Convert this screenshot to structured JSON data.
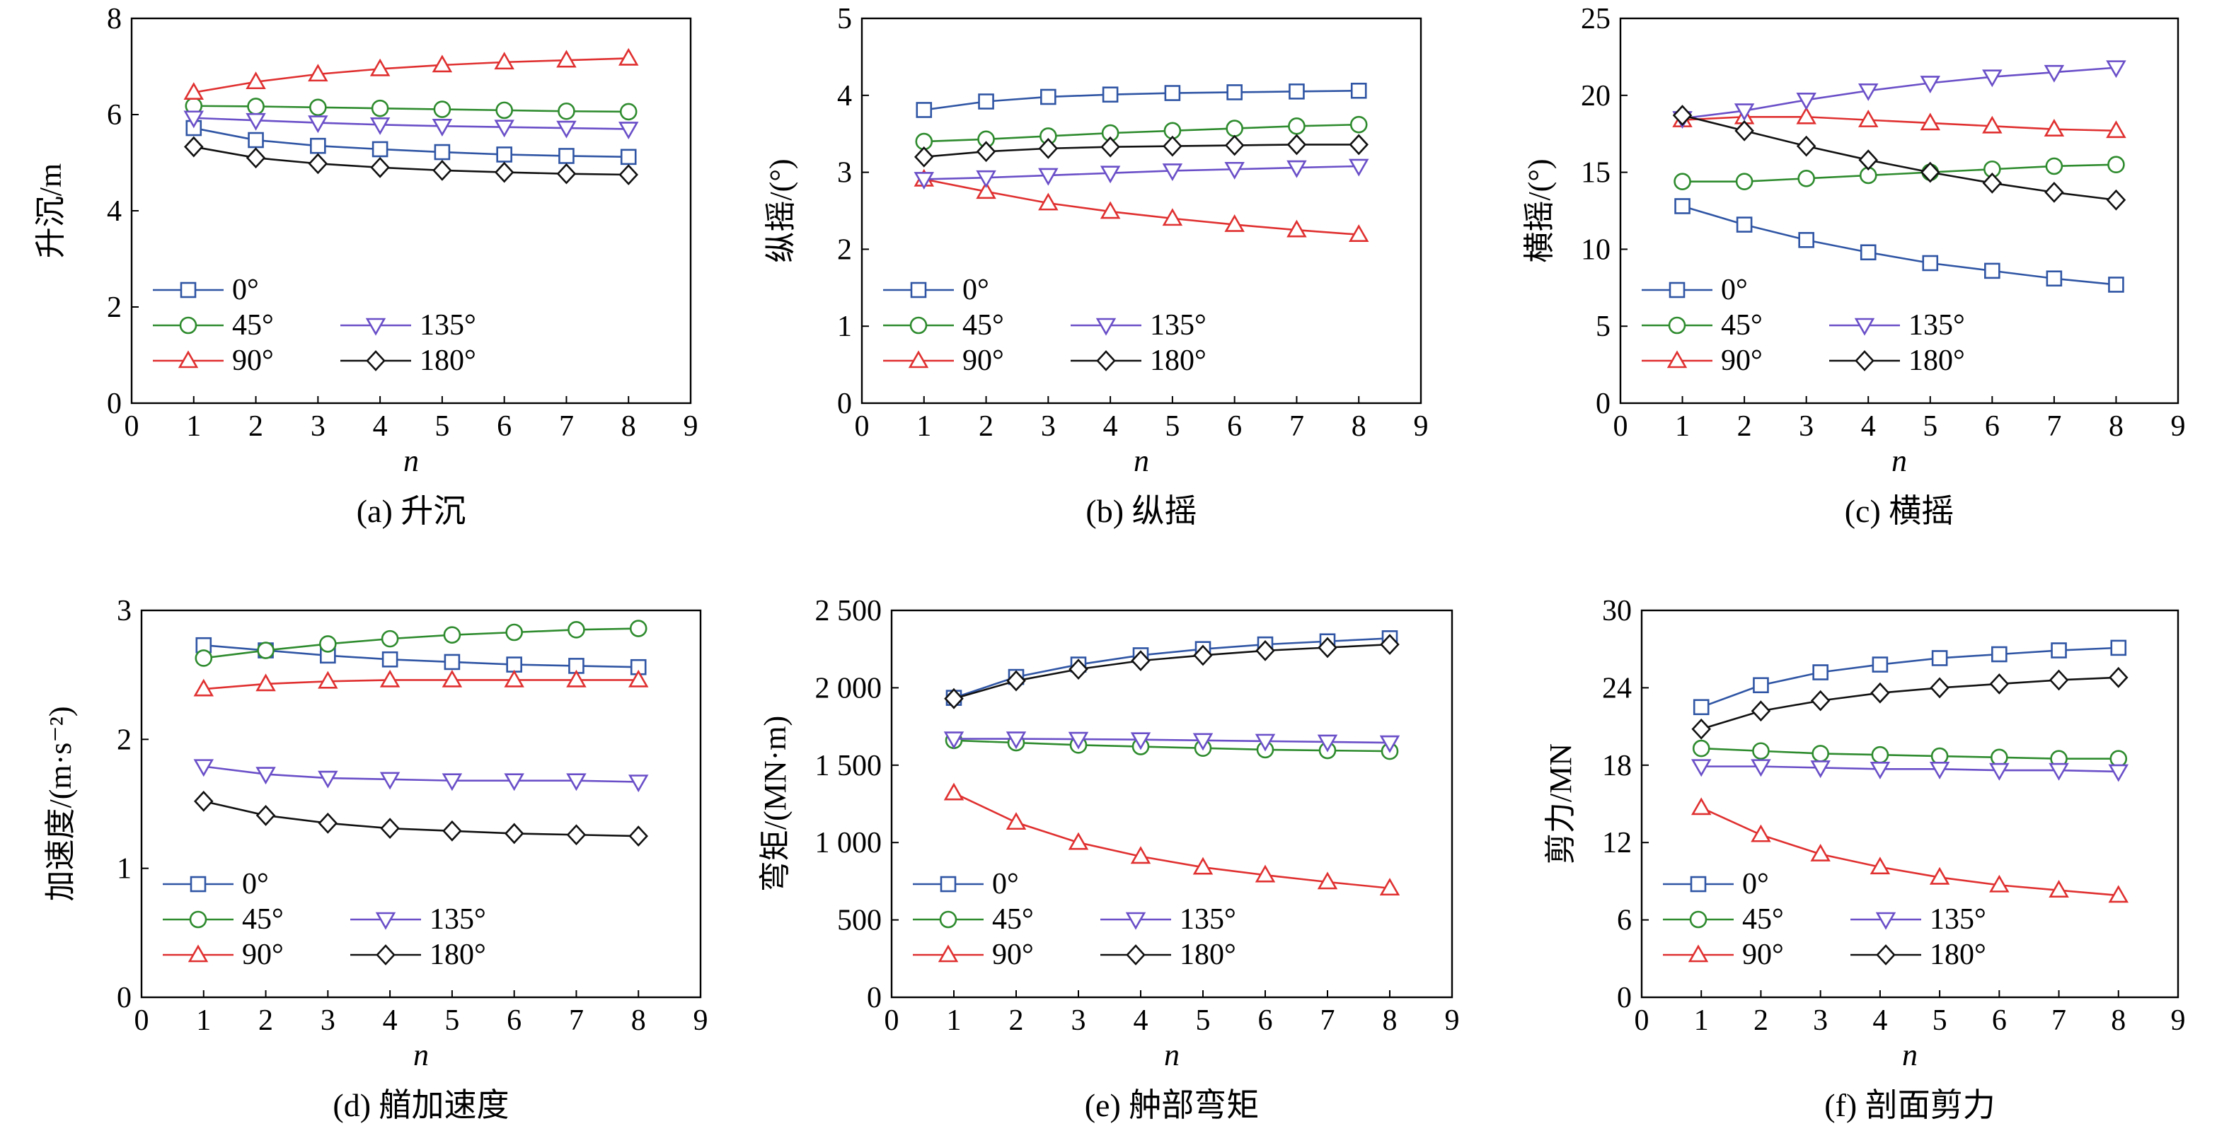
{
  "legend_entries": [
    "0°",
    "45°",
    "135°",
    "90°",
    "180°"
  ],
  "series_style": [
    {
      "name": "0°",
      "color": "#2f55a4",
      "marker": "square"
    },
    {
      "name": "45°",
      "color": "#2e8b2e",
      "marker": "circle"
    },
    {
      "name": "90°",
      "color": "#e03030",
      "marker": "triangle-up"
    },
    {
      "name": "135°",
      "color": "#6a4fc8",
      "marker": "triangle-down"
    },
    {
      "name": "180°",
      "color": "#111111",
      "marker": "diamond"
    }
  ],
  "chart_data": [
    {
      "type": "line",
      "caption": "(a) 升沉",
      "xlabel": "n",
      "ylabel": "升沉/m",
      "xlim": [
        0,
        9
      ],
      "ylim": [
        0,
        8
      ],
      "xticks": [
        "0",
        "1",
        "2",
        "3",
        "4",
        "5",
        "6",
        "7",
        "8",
        "9"
      ],
      "yticks": [
        "0",
        "2",
        "4",
        "6",
        "8"
      ],
      "x": [
        1,
        2,
        3,
        4,
        5,
        6,
        7,
        8
      ],
      "series": [
        {
          "name": "0°",
          "values": [
            5.72,
            5.47,
            5.35,
            5.28,
            5.22,
            5.17,
            5.14,
            5.12
          ]
        },
        {
          "name": "45°",
          "values": [
            6.18,
            6.17,
            6.15,
            6.13,
            6.11,
            6.09,
            6.07,
            6.06
          ]
        },
        {
          "name": "90°",
          "values": [
            6.46,
            6.68,
            6.84,
            6.95,
            7.03,
            7.09,
            7.13,
            7.17
          ]
        },
        {
          "name": "135°",
          "values": [
            5.93,
            5.88,
            5.83,
            5.79,
            5.76,
            5.74,
            5.72,
            5.7
          ]
        },
        {
          "name": "180°",
          "values": [
            5.33,
            5.1,
            4.98,
            4.9,
            4.84,
            4.8,
            4.77,
            4.75
          ]
        }
      ],
      "legend_position": "lower-left",
      "grid": false
    },
    {
      "type": "line",
      "caption": "(b) 纵摇",
      "xlabel": "n",
      "ylabel": "纵摇/(°)",
      "xlim": [
        0,
        9
      ],
      "ylim": [
        0,
        5
      ],
      "xticks": [
        "0",
        "1",
        "2",
        "3",
        "4",
        "5",
        "6",
        "7",
        "8",
        "9"
      ],
      "yticks": [
        "0",
        "1",
        "2",
        "3",
        "4",
        "5"
      ],
      "x": [
        1,
        2,
        3,
        4,
        5,
        6,
        7,
        8
      ],
      "series": [
        {
          "name": "0°",
          "values": [
            3.81,
            3.92,
            3.98,
            4.01,
            4.03,
            4.04,
            4.05,
            4.06
          ]
        },
        {
          "name": "45°",
          "values": [
            3.4,
            3.43,
            3.47,
            3.51,
            3.54,
            3.57,
            3.6,
            3.62
          ]
        },
        {
          "name": "90°",
          "values": [
            2.91,
            2.75,
            2.6,
            2.49,
            2.4,
            2.32,
            2.25,
            2.19
          ]
        },
        {
          "name": "135°",
          "values": [
            2.91,
            2.93,
            2.96,
            2.99,
            3.02,
            3.04,
            3.06,
            3.08
          ]
        },
        {
          "name": "180°",
          "values": [
            3.2,
            3.27,
            3.31,
            3.33,
            3.34,
            3.35,
            3.36,
            3.36
          ]
        }
      ],
      "legend_position": "lower-left",
      "grid": false
    },
    {
      "type": "line",
      "caption": "(c) 横摇",
      "xlabel": "n",
      "ylabel": "横摇/(°)",
      "xlim": [
        0,
        9
      ],
      "ylim": [
        0,
        25
      ],
      "xticks": [
        "0",
        "1",
        "2",
        "3",
        "4",
        "5",
        "6",
        "7",
        "8",
        "9"
      ],
      "yticks": [
        "0",
        "5",
        "10",
        "15",
        "20",
        "25"
      ],
      "x": [
        1,
        2,
        3,
        4,
        5,
        6,
        7,
        8
      ],
      "series": [
        {
          "name": "0°",
          "values": [
            12.8,
            11.6,
            10.6,
            9.8,
            9.1,
            8.6,
            8.1,
            7.7
          ]
        },
        {
          "name": "45°",
          "values": [
            14.4,
            14.4,
            14.6,
            14.8,
            15.0,
            15.2,
            15.4,
            15.5
          ]
        },
        {
          "name": "90°",
          "values": [
            18.4,
            18.6,
            18.6,
            18.4,
            18.2,
            18.0,
            17.8,
            17.7
          ]
        },
        {
          "name": "135°",
          "values": [
            18.5,
            19.0,
            19.7,
            20.3,
            20.8,
            21.2,
            21.5,
            21.8
          ]
        },
        {
          "name": "180°",
          "values": [
            18.7,
            17.7,
            16.7,
            15.8,
            15.0,
            14.3,
            13.7,
            13.2
          ]
        }
      ],
      "legend_position": "lower-left",
      "grid": false
    },
    {
      "type": "line",
      "caption": "(d) 艏加速度",
      "xlabel": "n",
      "ylabel": "加速度/(m·s⁻²)",
      "xlim": [
        0,
        9
      ],
      "ylim": [
        0,
        3
      ],
      "xticks": [
        "0",
        "1",
        "2",
        "3",
        "4",
        "5",
        "6",
        "7",
        "8",
        "9"
      ],
      "yticks": [
        "0",
        "1",
        "2",
        "3"
      ],
      "x": [
        1,
        2,
        3,
        4,
        5,
        6,
        7,
        8
      ],
      "series": [
        {
          "name": "0°",
          "values": [
            2.73,
            2.69,
            2.65,
            2.62,
            2.6,
            2.58,
            2.57,
            2.56
          ]
        },
        {
          "name": "45°",
          "values": [
            2.63,
            2.69,
            2.74,
            2.78,
            2.81,
            2.83,
            2.85,
            2.86
          ]
        },
        {
          "name": "90°",
          "values": [
            2.39,
            2.43,
            2.45,
            2.46,
            2.46,
            2.46,
            2.46,
            2.46
          ]
        },
        {
          "name": "135°",
          "values": [
            1.79,
            1.73,
            1.7,
            1.69,
            1.68,
            1.68,
            1.68,
            1.67
          ]
        },
        {
          "name": "180°",
          "values": [
            1.52,
            1.41,
            1.35,
            1.31,
            1.29,
            1.27,
            1.26,
            1.25
          ]
        }
      ],
      "legend_position": "lower-left",
      "grid": false
    },
    {
      "type": "line",
      "caption": "(e) 舯部弯矩",
      "xlabel": "n",
      "ylabel": "弯矩/(MN·m)",
      "xlim": [
        0,
        9
      ],
      "ylim": [
        0,
        2500
      ],
      "xticks": [
        "0",
        "1",
        "2",
        "3",
        "4",
        "5",
        "6",
        "7",
        "8",
        "9"
      ],
      "yticks": [
        "0",
        "500",
        "1 000",
        "1 500",
        "2 000",
        "2 500"
      ],
      "x": [
        1,
        2,
        3,
        4,
        5,
        6,
        7,
        8
      ],
      "series": [
        {
          "name": "0°",
          "values": [
            1935,
            2070,
            2150,
            2210,
            2250,
            2280,
            2300,
            2320
          ]
        },
        {
          "name": "45°",
          "values": [
            1660,
            1645,
            1630,
            1620,
            1610,
            1600,
            1595,
            1590
          ]
        },
        {
          "name": "90°",
          "values": [
            1320,
            1130,
            1000,
            910,
            840,
            790,
            745,
            705
          ]
        },
        {
          "name": "135°",
          "values": [
            1670,
            1670,
            1668,
            1665,
            1660,
            1655,
            1650,
            1645
          ]
        },
        {
          "name": "180°",
          "values": [
            1930,
            2045,
            2120,
            2175,
            2210,
            2240,
            2260,
            2280
          ]
        }
      ],
      "legend_position": "lower-left",
      "grid": false
    },
    {
      "type": "line",
      "caption": "(f) 剖面剪力",
      "xlabel": "n",
      "ylabel": "剪力/MN",
      "xlim": [
        0,
        9
      ],
      "ylim": [
        0,
        30
      ],
      "xticks": [
        "0",
        "1",
        "2",
        "3",
        "4",
        "5",
        "6",
        "7",
        "8",
        "9"
      ],
      "yticks": [
        "0",
        "6",
        "12",
        "18",
        "24",
        "30"
      ],
      "x": [
        1,
        2,
        3,
        4,
        5,
        6,
        7,
        8
      ],
      "series": [
        {
          "name": "0°",
          "values": [
            22.5,
            24.2,
            25.2,
            25.8,
            26.3,
            26.6,
            26.9,
            27.1
          ]
        },
        {
          "name": "45°",
          "values": [
            19.3,
            19.1,
            18.9,
            18.8,
            18.7,
            18.6,
            18.5,
            18.5
          ]
        },
        {
          "name": "90°",
          "values": [
            14.7,
            12.6,
            11.1,
            10.1,
            9.3,
            8.7,
            8.3,
            7.9
          ]
        },
        {
          "name": "135°",
          "values": [
            17.9,
            17.9,
            17.8,
            17.7,
            17.7,
            17.6,
            17.6,
            17.5
          ]
        },
        {
          "name": "180°",
          "values": [
            20.8,
            22.2,
            23.0,
            23.6,
            24.0,
            24.3,
            24.6,
            24.8
          ]
        }
      ],
      "legend_position": "lower-left",
      "grid": false
    }
  ]
}
